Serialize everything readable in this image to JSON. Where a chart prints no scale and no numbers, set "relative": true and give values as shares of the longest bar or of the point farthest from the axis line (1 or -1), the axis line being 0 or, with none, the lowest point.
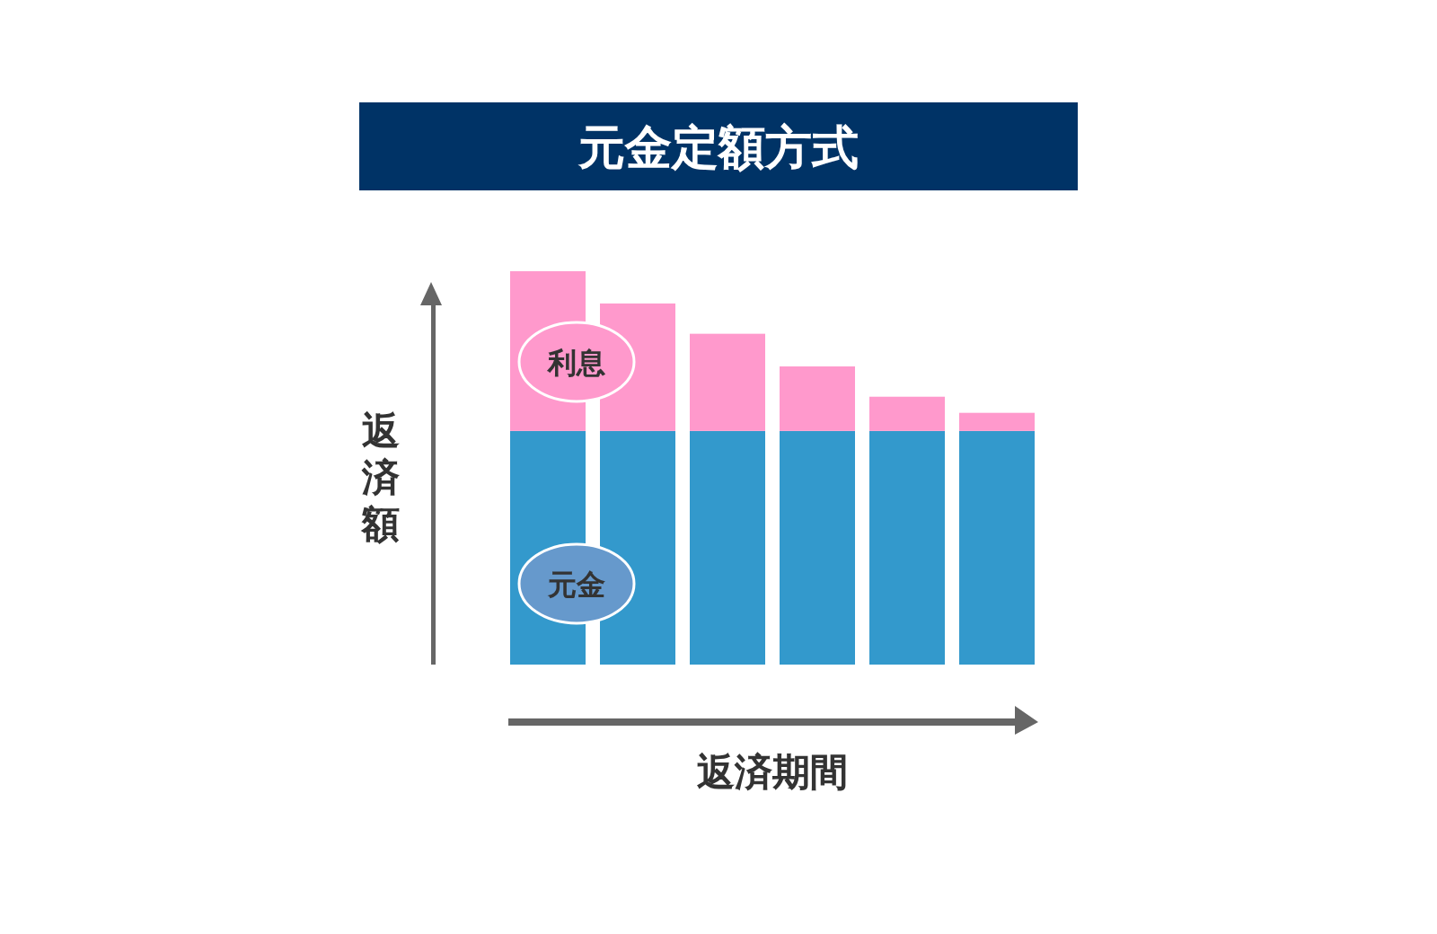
{
  "chart_data": {
    "type": "bar",
    "title": "元金定額方式",
    "xlabel": "返済期間",
    "ylabel": "返済額",
    "stacked": true,
    "relative": true,
    "categories": [
      null,
      null,
      null,
      null,
      null,
      null
    ],
    "series": [
      {
        "name": "元金",
        "color": "#3399cc",
        "values": [
          0.594,
          0.594,
          0.594,
          0.594,
          0.594,
          0.594
        ]
      },
      {
        "name": "利息",
        "color": "#ff99cc",
        "values": [
          0.406,
          0.324,
          0.247,
          0.164,
          0.087,
          0.046
        ]
      }
    ]
  }
}
